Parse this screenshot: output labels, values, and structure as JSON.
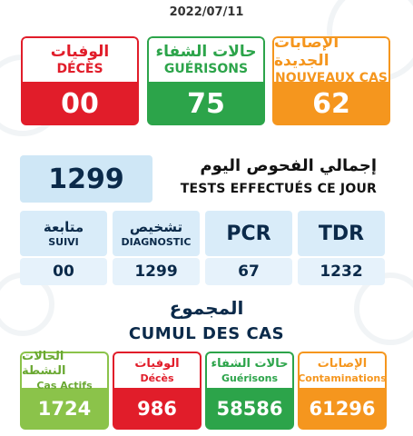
{
  "date": "2022/07/11",
  "top_cards": [
    {
      "ar": "الوفيات",
      "fr": "DÉCÈS",
      "value": "00",
      "color": "#e11d2a"
    },
    {
      "ar": "حالات الشفاء",
      "fr": "GUÉRISONS",
      "value": "75",
      "color": "#2ca44a"
    },
    {
      "ar": "الإصابات الجديدة",
      "fr": "NOUVEAUX CAS",
      "value": "62",
      "color": "#f5961e"
    }
  ],
  "tests": {
    "total": "1299",
    "label_ar": "إجمالي الفحوص اليوم",
    "label_fr": "TESTS EFFECTUÉS CE JOUR",
    "boxes": [
      {
        "ar": "متابعة",
        "fr": "SUIVI",
        "value": "00"
      },
      {
        "ar": "تشخيص",
        "fr": "DIAGNOSTIC",
        "value": "1299"
      },
      {
        "label": "PCR",
        "value": "67"
      },
      {
        "label": "TDR",
        "value": "1232"
      }
    ]
  },
  "cumul": {
    "label_ar": "المجموع",
    "label_fr": "CUMUL DES CAS",
    "cards": [
      {
        "ar": "الحالات النشطة",
        "fr": "Cas Actifs",
        "value": "1724",
        "color": "#8bc34a"
      },
      {
        "ar": "الوفيات",
        "fr": "Décès",
        "value": "986",
        "color": "#e11d2a"
      },
      {
        "ar": "حالات الشفاء",
        "fr": "Guérisons",
        "value": "58586",
        "color": "#2ca44a"
      },
      {
        "ar": "الإصابات",
        "fr": "Contaminations",
        "value": "61296",
        "color": "#f5961e"
      }
    ]
  }
}
